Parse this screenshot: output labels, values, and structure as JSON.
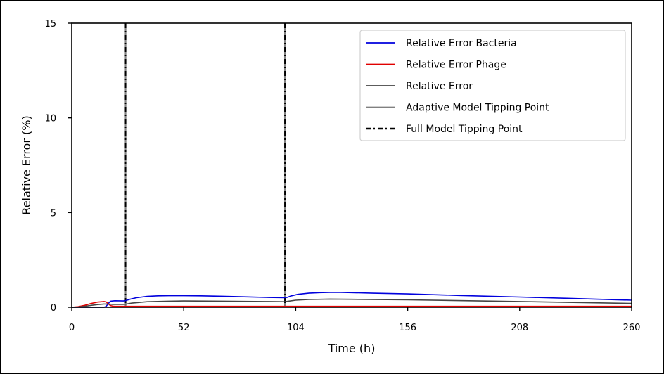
{
  "chart_data": {
    "type": "line",
    "title": "",
    "xlabel": "Time (h)",
    "ylabel": "Relative Error (%)",
    "xlim": [
      0,
      260
    ],
    "ylim": [
      0,
      15
    ],
    "xticks": [
      0,
      52,
      104,
      156,
      208,
      260
    ],
    "yticks": [
      0,
      5,
      10,
      15
    ],
    "grid": false,
    "legend_position": "top-right",
    "series": [
      {
        "name": "Relative Error Bacteria",
        "color": "#0000dd",
        "style": "solid",
        "x": [
          0,
          5,
          10,
          15,
          16,
          17,
          18,
          20,
          24,
          25,
          27,
          30,
          35,
          40,
          45,
          52,
          60,
          70,
          80,
          90,
          99,
          100,
          102,
          105,
          110,
          115,
          120,
          125,
          130,
          140,
          156,
          180,
          208,
          230,
          260
        ],
        "y": [
          0,
          0,
          0,
          0,
          0.05,
          0.2,
          0.32,
          0.34,
          0.33,
          0.35,
          0.42,
          0.5,
          0.57,
          0.6,
          0.61,
          0.61,
          0.6,
          0.58,
          0.55,
          0.52,
          0.5,
          0.52,
          0.6,
          0.68,
          0.74,
          0.77,
          0.78,
          0.78,
          0.77,
          0.74,
          0.7,
          0.62,
          0.54,
          0.47,
          0.37
        ]
      },
      {
        "name": "Relative Error Phage",
        "color": "#e00000",
        "style": "solid",
        "x": [
          0,
          3,
          6,
          9,
          12,
          15,
          16,
          17,
          18,
          19,
          20,
          25,
          30,
          52,
          104,
          156,
          208,
          260
        ],
        "y": [
          0,
          0.03,
          0.1,
          0.2,
          0.27,
          0.3,
          0.28,
          0.18,
          0.09,
          0.06,
          0.05,
          0.05,
          0.05,
          0.05,
          0.05,
          0.05,
          0.05,
          0.05
        ]
      },
      {
        "name": "Relative Error",
        "color": "#444444",
        "style": "solid",
        "x": [
          0,
          3,
          6,
          9,
          12,
          15,
          17,
          19,
          20,
          24,
          25,
          28,
          35,
          45,
          52,
          70,
          90,
          99,
          100,
          104,
          110,
          120,
          130,
          156,
          208,
          260
        ],
        "y": [
          0,
          0.01,
          0.05,
          0.1,
          0.14,
          0.17,
          0.17,
          0.15,
          0.15,
          0.15,
          0.16,
          0.22,
          0.29,
          0.32,
          0.33,
          0.32,
          0.3,
          0.29,
          0.31,
          0.37,
          0.41,
          0.43,
          0.42,
          0.39,
          0.3,
          0.2
        ]
      }
    ],
    "vertical_lines": [
      {
        "name": "Adaptive Model Tipping Point",
        "color": "#808080",
        "style": "solid",
        "x_values": [
          25,
          99
        ]
      },
      {
        "name": "Full Model Tipping Point",
        "color": "#000000",
        "style": "dash-dot",
        "x_values": [
          25,
          99
        ]
      }
    ],
    "legend": [
      {
        "label": "Relative Error Bacteria",
        "color": "#0000dd",
        "style": "solid"
      },
      {
        "label": "Relative Error Phage",
        "color": "#e00000",
        "style": "solid"
      },
      {
        "label": "Relative Error",
        "color": "#444444",
        "style": "solid"
      },
      {
        "label": "Adaptive Model Tipping Point",
        "color": "#808080",
        "style": "solid"
      },
      {
        "label": "Full Model Tipping Point",
        "color": "#000000",
        "style": "dash-dot"
      }
    ]
  }
}
